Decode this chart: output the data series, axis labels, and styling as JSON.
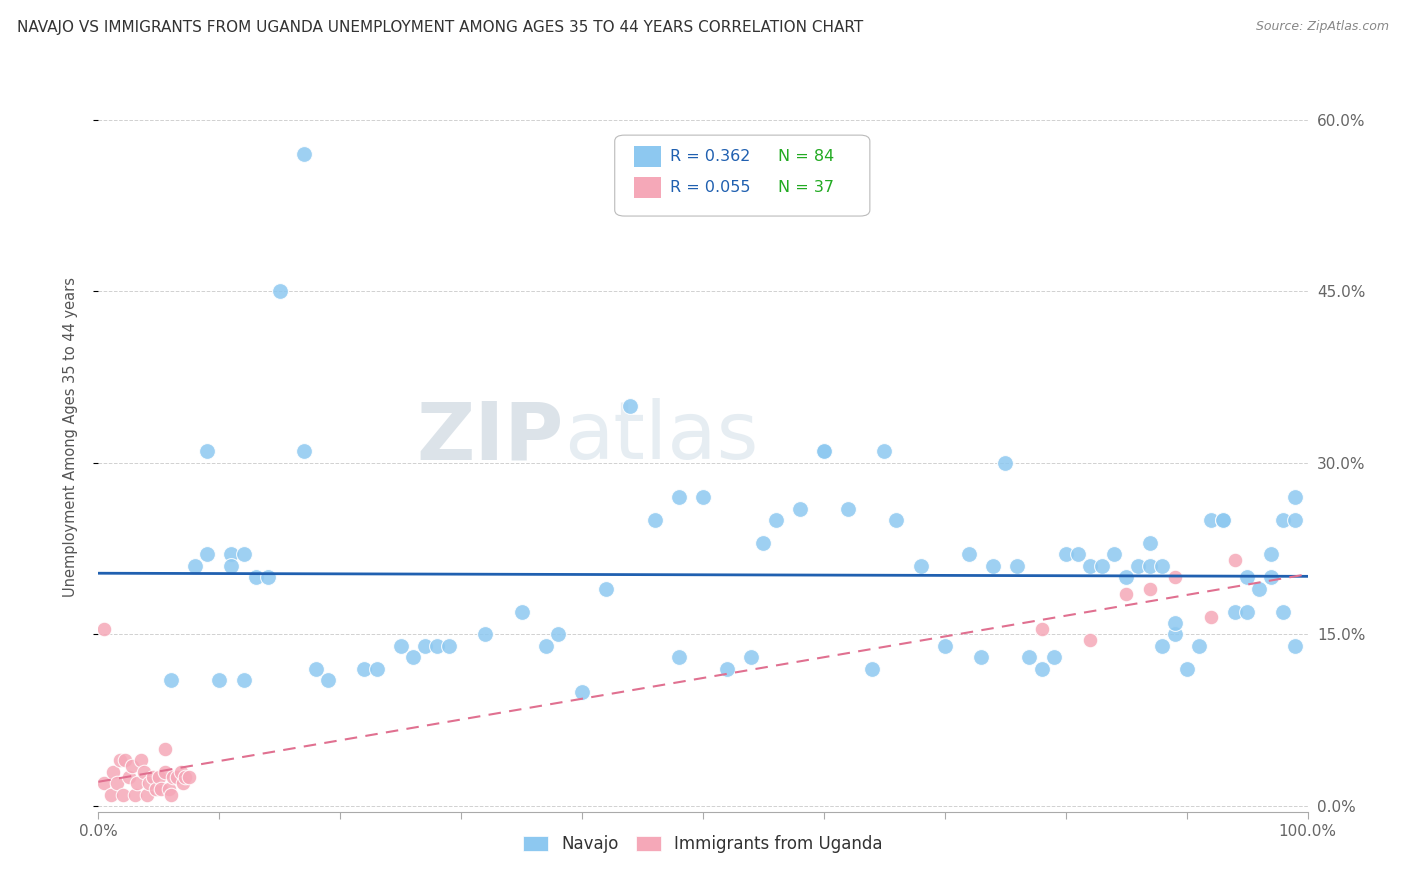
{
  "title": "NAVAJO VS IMMIGRANTS FROM UGANDA UNEMPLOYMENT AMONG AGES 35 TO 44 YEARS CORRELATION CHART",
  "source": "Source: ZipAtlas.com",
  "ylabel": "Unemployment Among Ages 35 to 44 years",
  "legend_label1": "Navajo",
  "legend_label2": "Immigrants from Uganda",
  "R1": 0.362,
  "N1": 84,
  "R2": 0.055,
  "N2": 37,
  "ytick_labels": [
    "0.0%",
    "15.0%",
    "30.0%",
    "45.0%",
    "60.0%"
  ],
  "ytick_values": [
    0.0,
    0.15,
    0.3,
    0.45,
    0.6
  ],
  "xlim": [
    0.0,
    1.0
  ],
  "ylim": [
    -0.005,
    0.65
  ],
  "navajo_x": [
    0.06,
    0.08,
    0.09,
    0.09,
    0.1,
    0.11,
    0.11,
    0.12,
    0.12,
    0.13,
    0.14,
    0.15,
    0.17,
    0.18,
    0.19,
    0.22,
    0.23,
    0.25,
    0.26,
    0.27,
    0.28,
    0.29,
    0.32,
    0.35,
    0.37,
    0.38,
    0.4,
    0.42,
    0.44,
    0.46,
    0.48,
    0.5,
    0.52,
    0.54,
    0.56,
    0.58,
    0.6,
    0.62,
    0.64,
    0.65,
    0.66,
    0.68,
    0.7,
    0.72,
    0.73,
    0.74,
    0.75,
    0.76,
    0.77,
    0.78,
    0.79,
    0.8,
    0.81,
    0.82,
    0.83,
    0.84,
    0.85,
    0.86,
    0.87,
    0.87,
    0.88,
    0.88,
    0.89,
    0.89,
    0.9,
    0.91,
    0.92,
    0.93,
    0.93,
    0.94,
    0.95,
    0.95,
    0.96,
    0.97,
    0.97,
    0.98,
    0.98,
    0.99,
    0.99,
    0.99,
    0.48,
    0.55,
    0.6,
    0.17
  ],
  "navajo_y": [
    0.11,
    0.21,
    0.22,
    0.31,
    0.11,
    0.22,
    0.21,
    0.22,
    0.11,
    0.2,
    0.2,
    0.45,
    0.31,
    0.12,
    0.11,
    0.12,
    0.12,
    0.14,
    0.13,
    0.14,
    0.14,
    0.14,
    0.15,
    0.17,
    0.14,
    0.15,
    0.1,
    0.19,
    0.35,
    0.25,
    0.13,
    0.27,
    0.12,
    0.13,
    0.25,
    0.26,
    0.31,
    0.26,
    0.12,
    0.31,
    0.25,
    0.21,
    0.14,
    0.22,
    0.13,
    0.21,
    0.3,
    0.21,
    0.13,
    0.12,
    0.13,
    0.22,
    0.22,
    0.21,
    0.21,
    0.22,
    0.2,
    0.21,
    0.21,
    0.23,
    0.14,
    0.21,
    0.15,
    0.16,
    0.12,
    0.14,
    0.25,
    0.25,
    0.25,
    0.17,
    0.17,
    0.2,
    0.19,
    0.22,
    0.2,
    0.25,
    0.17,
    0.14,
    0.25,
    0.27,
    0.27,
    0.23,
    0.31,
    0.57
  ],
  "uganda_x": [
    0.005,
    0.005,
    0.01,
    0.012,
    0.015,
    0.018,
    0.02,
    0.022,
    0.025,
    0.028,
    0.03,
    0.032,
    0.035,
    0.038,
    0.04,
    0.042,
    0.045,
    0.048,
    0.05,
    0.052,
    0.055,
    0.055,
    0.058,
    0.06,
    0.062,
    0.065,
    0.068,
    0.07,
    0.072,
    0.075,
    0.78,
    0.82,
    0.85,
    0.87,
    0.89,
    0.92,
    0.94
  ],
  "uganda_y": [
    0.155,
    0.02,
    0.01,
    0.03,
    0.02,
    0.04,
    0.01,
    0.04,
    0.025,
    0.035,
    0.01,
    0.02,
    0.04,
    0.03,
    0.01,
    0.02,
    0.025,
    0.015,
    0.025,
    0.015,
    0.03,
    0.05,
    0.015,
    0.01,
    0.025,
    0.025,
    0.03,
    0.02,
    0.025,
    0.025,
    0.155,
    0.145,
    0.185,
    0.19,
    0.2,
    0.165,
    0.215
  ],
  "navajo_color": "#8DC8F0",
  "uganda_color": "#F5A8B8",
  "navajo_line_color": "#2060B0",
  "uganda_line_color": "#E07090",
  "r_value_color": "#2060B0",
  "n_value_color": "#22AA22",
  "background_color": "#ffffff",
  "grid_color": "#cccccc",
  "title_color": "#333333",
  "axis_label_color": "#555555",
  "tick_label_color": "#666666",
  "watermark_zip_color": "#c8d8e8",
  "watermark_atlas_color": "#c8d8e8"
}
